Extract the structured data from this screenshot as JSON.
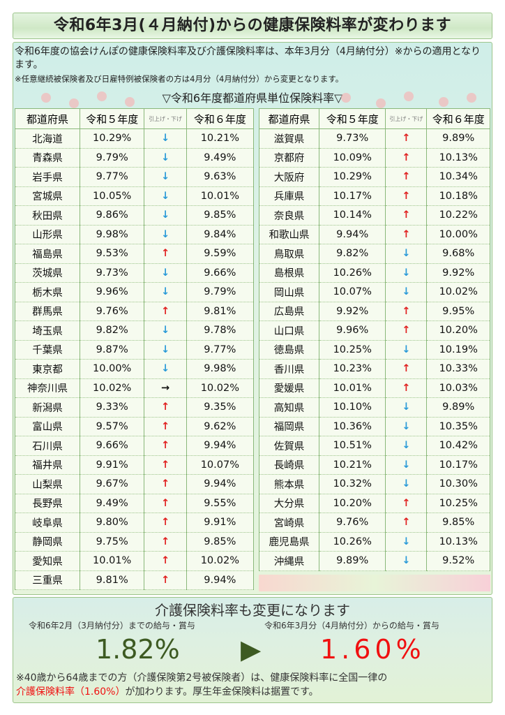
{
  "header": {
    "title": "令和6年3月(４月納付)からの健康保険料率が変わります"
  },
  "intro": {
    "text": "令和6年度の協会けんぽの健康保険料率及び介護保険料率は、本年3月分（4月納付分）※からの適用となります。",
    "note": "※任意継続被保険者及び日雇特例被保険者の方は4月分（4月納付分）から変更となります。",
    "table_title": "▽令和6年度都道府県単位保険料率▽"
  },
  "columns": [
    "都道府県",
    "令和５年度",
    "引上げ・下げ",
    "令和６年度"
  ],
  "colors": {
    "up": "#e02020",
    "down": "#2a9ad8",
    "same": "#111111"
  },
  "left_rows": [
    [
      "北海道",
      "10.29%",
      "down",
      "10.21%"
    ],
    [
      "青森県",
      "9.79%",
      "down",
      "9.49%"
    ],
    [
      "岩手県",
      "9.77%",
      "down",
      "9.63%"
    ],
    [
      "宮城県",
      "10.05%",
      "down",
      "10.01%"
    ],
    [
      "秋田県",
      "9.86%",
      "down",
      "9.85%"
    ],
    [
      "山形県",
      "9.98%",
      "down",
      "9.84%"
    ],
    [
      "福島県",
      "9.53%",
      "up",
      "9.59%"
    ],
    [
      "茨城県",
      "9.73%",
      "down",
      "9.66%"
    ],
    [
      "栃木県",
      "9.96%",
      "down",
      "9.79%"
    ],
    [
      "群馬県",
      "9.76%",
      "up",
      "9.81%"
    ],
    [
      "埼玉県",
      "9.82%",
      "down",
      "9.78%"
    ],
    [
      "千葉県",
      "9.87%",
      "down",
      "9.77%"
    ],
    [
      "東京都",
      "10.00%",
      "down",
      "9.98%"
    ],
    [
      "神奈川県",
      "10.02%",
      "same",
      "10.02%"
    ],
    [
      "新潟県",
      "9.33%",
      "up",
      "9.35%"
    ],
    [
      "富山県",
      "9.57%",
      "up",
      "9.62%"
    ],
    [
      "石川県",
      "9.66%",
      "up",
      "9.94%"
    ],
    [
      "福井県",
      "9.91%",
      "up",
      "10.07%"
    ],
    [
      "山梨県",
      "9.67%",
      "up",
      "9.94%"
    ],
    [
      "長野県",
      "9.49%",
      "up",
      "9.55%"
    ],
    [
      "岐阜県",
      "9.80%",
      "up",
      "9.91%"
    ],
    [
      "静岡県",
      "9.75%",
      "up",
      "9.85%"
    ],
    [
      "愛知県",
      "10.01%",
      "up",
      "10.02%"
    ],
    [
      "三重県",
      "9.81%",
      "up",
      "9.94%"
    ]
  ],
  "right_rows": [
    [
      "滋賀県",
      "9.73%",
      "up",
      "9.89%"
    ],
    [
      "京都府",
      "10.09%",
      "up",
      "10.13%"
    ],
    [
      "大阪府",
      "10.29%",
      "up",
      "10.34%"
    ],
    [
      "兵庫県",
      "10.17%",
      "up",
      "10.18%"
    ],
    [
      "奈良県",
      "10.14%",
      "up",
      "10.22%"
    ],
    [
      "和歌山県",
      "9.94%",
      "up",
      "10.00%"
    ],
    [
      "鳥取県",
      "9.82%",
      "down",
      "9.68%"
    ],
    [
      "島根県",
      "10.26%",
      "down",
      "9.92%"
    ],
    [
      "岡山県",
      "10.07%",
      "down",
      "10.02%"
    ],
    [
      "広島県",
      "9.92%",
      "up",
      "9.95%"
    ],
    [
      "山口県",
      "9.96%",
      "up",
      "10.20%"
    ],
    [
      "徳島県",
      "10.25%",
      "down",
      "10.19%"
    ],
    [
      "香川県",
      "10.23%",
      "up",
      "10.33%"
    ],
    [
      "愛媛県",
      "10.01%",
      "up",
      "10.03%"
    ],
    [
      "高知県",
      "10.10%",
      "down",
      "9.89%"
    ],
    [
      "福岡県",
      "10.36%",
      "down",
      "10.35%"
    ],
    [
      "佐賀県",
      "10.51%",
      "down",
      "10.42%"
    ],
    [
      "長崎県",
      "10.21%",
      "down",
      "10.17%"
    ],
    [
      "熊本県",
      "10.32%",
      "down",
      "10.30%"
    ],
    [
      "大分県",
      "10.20%",
      "up",
      "10.25%"
    ],
    [
      "宮崎県",
      "9.76%",
      "up",
      "9.85%"
    ],
    [
      "鹿児島県",
      "10.26%",
      "down",
      "10.13%"
    ],
    [
      "沖縄県",
      "9.89%",
      "down",
      "9.52%"
    ]
  ],
  "care": {
    "title": "介護保険料率も変更になります",
    "before_label": "令和6年2月（3月納付分）までの給与・賞与",
    "after_label": "令和6年3月分（4月納付分）からの給与・賞与",
    "before": "1.82%",
    "arrow": "▶",
    "after": "1.60%",
    "note1": "※40歳から64歳までの方（介護保険第2号被保険者）は、健康保険料率に全国一律の",
    "note_red": "介護保険料率（1.60%）",
    "note2": "が加わります。厚生年金保険料は据置です。"
  }
}
